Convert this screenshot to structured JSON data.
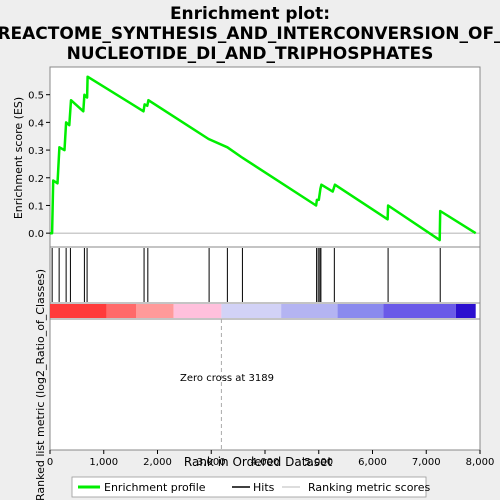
{
  "chart_data": {
    "type": "line",
    "title_lines": [
      "Enrichment plot:",
      "REACTOME_SYNTHESIS_AND_INTERCONVERSION_OF_",
      "NUCLEOTIDE_DI_AND_TRIPHOSPHATES"
    ],
    "ylabel_top": "Enrichment score (ES)",
    "ylabel_bottom": "Ranked list metric (log2_Ratio_of_Classes)",
    "xlabel": "Rank in Ordered Dataset",
    "xlim": [
      0,
      8000
    ],
    "ylim_top": [
      -0.05,
      0.6
    ],
    "x_ticks": [
      0,
      1000,
      2000,
      3000,
      4000,
      5000,
      6000,
      7000,
      8000
    ],
    "x_tick_labels": [
      "0",
      "1,000",
      "2,000",
      "3,000",
      "4,000",
      "5,000",
      "6,000",
      "7,000",
      "8,000"
    ],
    "y_ticks_top": [
      0.0,
      0.1,
      0.2,
      0.3,
      0.4,
      0.5
    ],
    "y_tick_labels_top": [
      "0.0",
      "0.1",
      "0.2",
      "0.3",
      "0.4",
      "0.5"
    ],
    "annotation": "Zero cross at 3189",
    "zero_cross": 3189,
    "series": [
      {
        "name": "Enrichment profile",
        "color": "#00ee00",
        "x": [
          0,
          40,
          60,
          140,
          175,
          270,
          300,
          360,
          390,
          620,
          640,
          690,
          700,
          1740,
          1760,
          1810,
          1830,
          2950,
          3300,
          3560,
          3600,
          4950,
          4965,
          5000,
          5030,
          5050,
          5260,
          5300,
          6280,
          6290,
          7250,
          7260,
          7920
        ],
        "y": [
          0.0,
          0.0,
          0.19,
          0.18,
          0.31,
          0.3,
          0.4,
          0.39,
          0.48,
          0.44,
          0.5,
          0.49,
          0.565,
          0.44,
          0.465,
          0.46,
          0.48,
          0.34,
          0.31,
          0.275,
          0.27,
          0.1,
          0.12,
          0.12,
          0.16,
          0.175,
          0.15,
          0.175,
          0.05,
          0.1,
          -0.025,
          0.08,
          0.0
        ]
      }
    ],
    "hits": [
      40,
      170,
      300,
      380,
      640,
      690,
      1750,
      1820,
      2960,
      3300,
      3580,
      4960,
      4990,
      5020,
      5040,
      5290,
      6290,
      7260
    ],
    "metric_segments": [
      {
        "x0": 0,
        "x1": 1050,
        "color": "#ff3b3b"
      },
      {
        "x0": 1050,
        "x1": 1600,
        "color": "#ff6a6a"
      },
      {
        "x0": 1600,
        "x1": 2300,
        "color": "#ff9a9a"
      },
      {
        "x0": 2300,
        "x1": 3189,
        "color": "#ffc0dc"
      },
      {
        "x0": 3189,
        "x1": 4300,
        "color": "#d2d2f6"
      },
      {
        "x0": 4300,
        "x1": 5350,
        "color": "#b4b4f2"
      },
      {
        "x0": 5350,
        "x1": 6200,
        "color": "#8a8aee"
      },
      {
        "x0": 6200,
        "x1": 7550,
        "color": "#6a5ae8"
      },
      {
        "x0": 7550,
        "x1": 7920,
        "color": "#2b0fcf"
      }
    ],
    "legend": [
      {
        "label": "Enrichment profile",
        "color": "#00ee00",
        "style": "line"
      },
      {
        "label": "Hits",
        "color": "#000000",
        "style": "line"
      },
      {
        "label": "Ranking metric scores",
        "color": "#bbbbbb",
        "style": "line"
      }
    ]
  }
}
